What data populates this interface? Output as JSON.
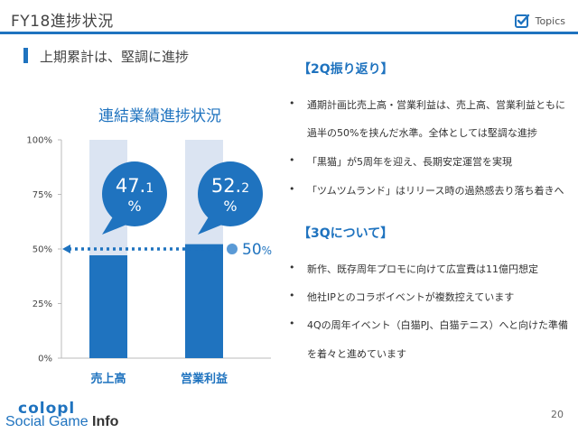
{
  "header": {
    "title": "FY18進捗状況",
    "topics_label": "Topics",
    "topics_icon": "checkbox-icon",
    "accent_color": "#1f73bf"
  },
  "subtitle": "上期累計は、堅調に進捗",
  "chart_data": {
    "type": "bar",
    "title": "連結業績進捗状況",
    "categories": [
      "売上高",
      "営業利益"
    ],
    "values": [
      47.1,
      52.2
    ],
    "value_labels": [
      {
        "num": "47.",
        "dec": "1",
        "unit": "%"
      },
      {
        "num": "52.",
        "dec": "2",
        "unit": "%"
      }
    ],
    "yticks": [
      "0%",
      "25%",
      "50%",
      "75%",
      "100%"
    ],
    "ylim": [
      0,
      100
    ],
    "reference_line": {
      "value": 50,
      "num": "50",
      "unit": "%"
    },
    "colors": {
      "bar": "#1f73bf",
      "background": "#dbe4f2",
      "bubble": "#1f73bf"
    }
  },
  "sections": [
    {
      "heading": "【2Q振り返り】",
      "bullets": [
        {
          "text": "通期計画比売上高・営業利益は、売上高、営業利益ともに",
          "cont": "過半の50%を挟んだ水準。全体としては堅調な進捗"
        },
        {
          "text": "「黒猫」が5周年を迎え、長期安定運営を実現"
        },
        {
          "text": "「ツムツムランド」はリリース時の過熱感去り落ち着きへ"
        }
      ]
    },
    {
      "heading": "【3Qについて】",
      "bullets": [
        {
          "text": "新作、既存周年プロモに向けて広宣費は11億円想定"
        },
        {
          "text": "他社IPとのコラボイベントが複数控えています"
        },
        {
          "text": "4Qの周年イベント（白猫PJ、白猫テニス）へと向けた準備",
          "cont": "を着々と進めています"
        }
      ]
    }
  ],
  "footer": {
    "logo_top": "colopl",
    "logo_social": "Social Game ",
    "logo_info": "Info",
    "page_number": "20"
  }
}
